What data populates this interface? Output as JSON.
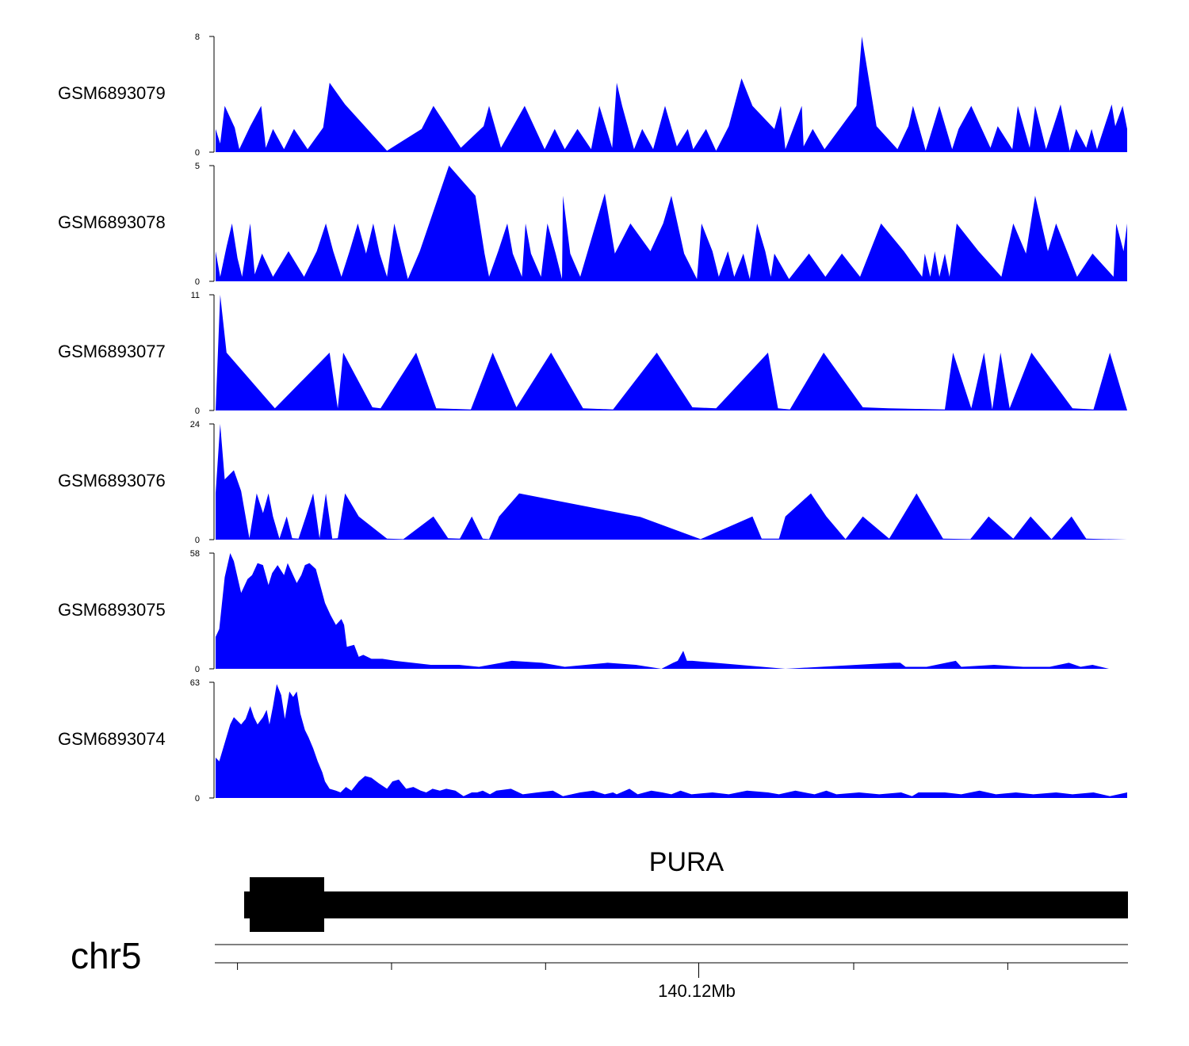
{
  "chart_data": {
    "type": "area",
    "colors": {
      "signal": "#0000ff",
      "gene": "#000000"
    },
    "xlim": [
      0,
      1
    ],
    "tracks": [
      {
        "name": "GSM6893079",
        "ylim": [
          0,
          8
        ],
        "yticks": [
          "0",
          "8"
        ],
        "x": [
          0,
          0.005,
          0.01,
          0.021,
          0.026,
          0.038,
          0.05,
          0.055,
          0.063,
          0.075,
          0.086,
          0.101,
          0.118,
          0.125,
          0.142,
          0.188,
          0.226,
          0.239,
          0.269,
          0.294,
          0.3,
          0.313,
          0.339,
          0.361,
          0.372,
          0.383,
          0.397,
          0.412,
          0.421,
          0.435,
          0.44,
          0.446,
          0.459,
          0.468,
          0.48,
          0.493,
          0.506,
          0.518,
          0.524,
          0.538,
          0.549,
          0.563,
          0.569,
          0.577,
          0.589,
          0.613,
          0.62,
          0.625,
          0.643,
          0.645,
          0.655,
          0.668,
          0.703,
          0.709,
          0.725,
          0.748,
          0.76,
          0.765,
          0.779,
          0.794,
          0.808,
          0.815,
          0.829,
          0.85,
          0.858,
          0.874,
          0.88,
          0.893,
          0.899,
          0.911,
          0.927,
          0.937,
          0.944,
          0.955,
          0.961,
          0.967,
          0.983,
          0.987,
          0.995,
          1
        ],
        "y": [
          1.6,
          0.6,
          3.2,
          1.7,
          0.2,
          1.8,
          3.2,
          0.3,
          1.6,
          0.2,
          1.6,
          0.2,
          1.7,
          4.8,
          3.3,
          0.1,
          1.6,
          3.2,
          0.3,
          1.8,
          3.2,
          0.3,
          3.2,
          0.2,
          1.6,
          0.2,
          1.6,
          0.2,
          3.2,
          0.3,
          4.8,
          3.2,
          0.2,
          1.6,
          0.2,
          3.2,
          0.4,
          1.6,
          0.2,
          1.6,
          0.1,
          1.8,
          3.2,
          5.1,
          3.2,
          1.6,
          3.2,
          0.2,
          3.2,
          0.4,
          1.6,
          0.2,
          3.2,
          8.1,
          1.8,
          0.2,
          1.8,
          3.2,
          0.1,
          3.2,
          0.2,
          1.6,
          3.2,
          0.3,
          1.8,
          0.2,
          3.2,
          0.3,
          3.2,
          0.2,
          3.3,
          0.1,
          1.6,
          0.3,
          1.6,
          0.2,
          3.3,
          1.8,
          3.2,
          1.6
        ]
      },
      {
        "name": "GSM6893078",
        "ylim": [
          0,
          5
        ],
        "yticks": [
          "0",
          "5"
        ],
        "x": [
          0,
          0.005,
          0.012,
          0.018,
          0.024,
          0.029,
          0.038,
          0.043,
          0.051,
          0.063,
          0.08,
          0.097,
          0.111,
          0.121,
          0.129,
          0.138,
          0.147,
          0.156,
          0.165,
          0.173,
          0.18,
          0.188,
          0.196,
          0.204,
          0.211,
          0.224,
          0.256,
          0.285,
          0.295,
          0.3,
          0.31,
          0.32,
          0.326,
          0.336,
          0.34,
          0.346,
          0.357,
          0.364,
          0.373,
          0.38,
          0.381,
          0.389,
          0.4,
          0.427,
          0.438,
          0.455,
          0.477,
          0.491,
          0.5,
          0.514,
          0.528,
          0.533,
          0.545,
          0.552,
          0.562,
          0.569,
          0.579,
          0.586,
          0.594,
          0.603,
          0.609,
          0.613,
          0.629,
          0.651,
          0.669,
          0.687,
          0.707,
          0.73,
          0.755,
          0.775,
          0.778,
          0.784,
          0.789,
          0.794,
          0.8,
          0.805,
          0.813,
          0.837,
          0.862,
          0.875,
          0.889,
          0.899,
          0.913,
          0.922,
          0.945,
          0.962,
          0.985,
          0.988,
          0.996,
          1
        ],
        "y": [
          1.3,
          0.2,
          1.5,
          2.5,
          1.0,
          0.2,
          2.5,
          0.3,
          1.2,
          0.2,
          1.3,
          0.2,
          1.3,
          2.5,
          1.3,
          0.2,
          1.3,
          2.5,
          1.2,
          2.5,
          1.2,
          0.2,
          2.5,
          1.2,
          0.1,
          1.3,
          5.1,
          3.7,
          1.2,
          0.2,
          1.3,
          2.5,
          1.2,
          0.2,
          2.5,
          1.2,
          0.2,
          2.5,
          1.2,
          0.1,
          3.7,
          1.2,
          0.2,
          3.8,
          1.2,
          2.5,
          1.3,
          2.5,
          3.7,
          1.2,
          0.1,
          2.5,
          1.3,
          0.2,
          1.3,
          0.2,
          1.2,
          0.1,
          2.5,
          1.3,
          0.2,
          1.2,
          0.1,
          1.2,
          0.2,
          1.2,
          0.2,
          2.5,
          1.3,
          0.2,
          1.2,
          0.2,
          1.3,
          0.2,
          1.2,
          0.2,
          2.5,
          1.3,
          0.2,
          2.5,
          1.2,
          3.7,
          1.3,
          2.5,
          0.2,
          1.2,
          0.2,
          2.5,
          1.3,
          2.5
        ]
      },
      {
        "name": "GSM6893077",
        "ylim": [
          0,
          11
        ],
        "yticks": [
          "0",
          "11"
        ],
        "x": [
          0,
          0.005,
          0.012,
          0.065,
          0.125,
          0.134,
          0.14,
          0.172,
          0.181,
          0.22,
          0.242,
          0.28,
          0.304,
          0.33,
          0.368,
          0.403,
          0.436,
          0.484,
          0.523,
          0.549,
          0.606,
          0.617,
          0.63,
          0.667,
          0.71,
          0.738,
          0.8,
          0.809,
          0.829,
          0.843,
          0.852,
          0.861,
          0.871,
          0.895,
          0.94,
          0.963,
          0.981,
          1
        ],
        "y": [
          0,
          11.5,
          5.5,
          0.2,
          5.5,
          0.2,
          5.5,
          0.3,
          0.2,
          5.5,
          0.2,
          0.1,
          5.5,
          0.3,
          5.5,
          0.2,
          0.1,
          5.5,
          0.3,
          0.2,
          5.5,
          0.2,
          0.1,
          5.5,
          0.3,
          0.2,
          0.1,
          5.5,
          0.2,
          5.5,
          0.1,
          5.5,
          0.2,
          5.5,
          0.2,
          0.1,
          5.5,
          0
        ]
      },
      {
        "name": "GSM6893076",
        "ylim": [
          0,
          24
        ],
        "yticks": [
          "0",
          "24"
        ],
        "x": [
          0,
          0.005,
          0.01,
          0.02,
          0.028,
          0.037,
          0.045,
          0.052,
          0.058,
          0.063,
          0.07,
          0.078,
          0.084,
          0.091,
          0.099,
          0.107,
          0.114,
          0.121,
          0.128,
          0.134,
          0.142,
          0.157,
          0.188,
          0.206,
          0.239,
          0.255,
          0.268,
          0.281,
          0.293,
          0.3,
          0.311,
          0.333,
          0.466,
          0.532,
          0.589,
          0.599,
          0.618,
          0.625,
          0.653,
          0.67,
          0.691,
          0.71,
          0.739,
          0.769,
          0.798,
          0.828,
          0.848,
          0.875,
          0.894,
          0.917,
          0.939,
          0.955,
          1
        ],
        "y": [
          9.6,
          24,
          12.5,
          14.4,
          10.1,
          0.3,
          9.6,
          5.5,
          9.6,
          4.8,
          0.2,
          4.8,
          0.3,
          0.2,
          4.8,
          9.6,
          0.3,
          9.6,
          0.2,
          0.3,
          9.6,
          4.8,
          0.2,
          0.1,
          4.8,
          0.3,
          0.2,
          4.8,
          0.2,
          0.1,
          4.8,
          9.6,
          4.7,
          0.1,
          4.8,
          0.2,
          0.2,
          4.8,
          9.6,
          4.8,
          0.1,
          4.8,
          0.2,
          9.6,
          0.2,
          0.1,
          4.8,
          0.2,
          4.8,
          0.1,
          4.8,
          0.2,
          0
        ]
      },
      {
        "name": "GSM6893075",
        "ylim": [
          0,
          58
        ],
        "yticks": [
          "0",
          "58"
        ],
        "x": [
          0,
          0.004,
          0.01,
          0.016,
          0.02,
          0.028,
          0.035,
          0.04,
          0.046,
          0.052,
          0.058,
          0.062,
          0.068,
          0.075,
          0.079,
          0.085,
          0.089,
          0.094,
          0.098,
          0.103,
          0.11,
          0.12,
          0.126,
          0.132,
          0.138,
          0.141,
          0.144,
          0.152,
          0.157,
          0.162,
          0.171,
          0.183,
          0.197,
          0.216,
          0.236,
          0.267,
          0.289,
          0.325,
          0.358,
          0.383,
          0.43,
          0.461,
          0.489,
          0.502,
          0.507,
          0.513,
          0.517,
          0.523,
          0.625,
          0.744,
          0.751,
          0.757,
          0.78,
          0.812,
          0.818,
          0.854,
          0.886,
          0.915,
          0.936,
          0.949,
          0.962,
          0.98,
          1
        ],
        "y": [
          16,
          20,
          46,
          58,
          54,
          38,
          45,
          47,
          53,
          52,
          42,
          48,
          52,
          47,
          53,
          47,
          43,
          47,
          52,
          53,
          50,
          33,
          27,
          22,
          25,
          22,
          11,
          12,
          6,
          7,
          5,
          5,
          4,
          3,
          2,
          2,
          1,
          4,
          3,
          1,
          3,
          2,
          0,
          3,
          4,
          9,
          4,
          4,
          0,
          3,
          3,
          1,
          1,
          4,
          1,
          2,
          1,
          1,
          3,
          1,
          2,
          0,
          0
        ]
      },
      {
        "name": "GSM6893074",
        "ylim": [
          0,
          63
        ],
        "yticks": [
          "0",
          "63"
        ],
        "x": [
          0,
          0.004,
          0.01,
          0.016,
          0.02,
          0.028,
          0.033,
          0.038,
          0.042,
          0.046,
          0.052,
          0.056,
          0.059,
          0.063,
          0.067,
          0.072,
          0.076,
          0.081,
          0.085,
          0.089,
          0.093,
          0.098,
          0.102,
          0.107,
          0.112,
          0.117,
          0.12,
          0.125,
          0.132,
          0.137,
          0.143,
          0.149,
          0.157,
          0.164,
          0.171,
          0.179,
          0.188,
          0.194,
          0.201,
          0.209,
          0.217,
          0.225,
          0.231,
          0.238,
          0.246,
          0.253,
          0.263,
          0.272,
          0.281,
          0.287,
          0.293,
          0.301,
          0.308,
          0.324,
          0.337,
          0.353,
          0.37,
          0.381,
          0.4,
          0.414,
          0.427,
          0.436,
          0.44,
          0.454,
          0.463,
          0.478,
          0.49,
          0.5,
          0.51,
          0.522,
          0.545,
          0.563,
          0.583,
          0.606,
          0.618,
          0.636,
          0.646,
          0.657,
          0.67,
          0.681,
          0.706,
          0.728,
          0.752,
          0.764,
          0.771,
          0.8,
          0.818,
          0.838,
          0.856,
          0.878,
          0.897,
          0.922,
          0.94,
          0.963,
          0.981,
          1
        ],
        "y": [
          22,
          20,
          30,
          40,
          44,
          40,
          43,
          50,
          44,
          40,
          44,
          48,
          40,
          50,
          62,
          56,
          43,
          58,
          55,
          58,
          46,
          37,
          33,
          27,
          20,
          14,
          9,
          5,
          4,
          3,
          6,
          4,
          9,
          12,
          11,
          8,
          5,
          9,
          10,
          5,
          6,
          4,
          3,
          5,
          4,
          5,
          4,
          1,
          3,
          3,
          4,
          2,
          4,
          5,
          2,
          3,
          4,
          1,
          3,
          4,
          2,
          3,
          2,
          5,
          2,
          4,
          3,
          2,
          4,
          2,
          3,
          2,
          4,
          3,
          2,
          4,
          3,
          2,
          4,
          2,
          3,
          2,
          3,
          1,
          3,
          3,
          2,
          4,
          2,
          3,
          2,
          3,
          2,
          3,
          1,
          3
        ]
      }
    ],
    "gene": {
      "name": "PURA",
      "exons": [
        [
          -0.05,
          0.12
        ]
      ],
      "cds": [
        [
          -0.015,
          0.12
        ]
      ],
      "utr": [
        [
          0.12,
          1
        ]
      ]
    },
    "chromosome": "chr5",
    "axis": {
      "tick_positions": [
        0.024,
        0.193,
        0.362,
        0.53,
        0.7,
        0.869
      ],
      "major_tick_label": "140.12Mb",
      "major_tick_index": 3
    }
  }
}
